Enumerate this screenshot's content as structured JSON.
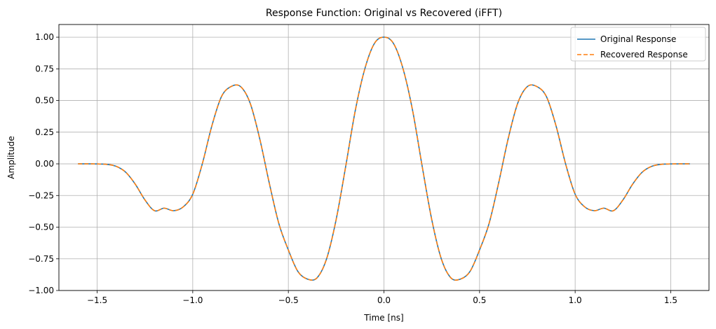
{
  "chart_data": {
    "type": "line",
    "title": "Response Function: Original vs Recovered (iFFT)",
    "xlabel": "Time [ns]",
    "ylabel": "Amplitude",
    "xlim": [
      -1.7,
      1.7
    ],
    "ylim": [
      -1.0,
      1.1
    ],
    "xticks": [
      -1.5,
      -1.0,
      -0.5,
      0.0,
      0.5,
      1.0,
      1.5
    ],
    "xtick_labels": [
      "−1.5",
      "−1.0",
      "−0.5",
      "0.0",
      "0.5",
      "1.0",
      "1.5"
    ],
    "yticks": [
      -1.0,
      -0.75,
      -0.5,
      -0.25,
      0.0,
      0.25,
      0.5,
      0.75,
      1.0
    ],
    "ytick_labels": [
      "−1.00",
      "−0.75",
      "−0.50",
      "−0.25",
      "0.00",
      "0.25",
      "0.50",
      "0.75",
      "1.00"
    ],
    "grid": true,
    "legend_position": "top-right",
    "series": [
      {
        "name": "Original Response",
        "color": "#1f77b4",
        "style": "solid",
        "x": [
          -1.6,
          -1.55,
          -1.5,
          -1.45,
          -1.4,
          -1.35,
          -1.3,
          -1.25,
          -1.2,
          -1.15,
          -1.1,
          -1.05,
          -1.0,
          -0.95,
          -0.9,
          -0.85,
          -0.8,
          -0.75,
          -0.7,
          -0.65,
          -0.6,
          -0.55,
          -0.5,
          -0.45,
          -0.4,
          -0.35,
          -0.3,
          -0.25,
          -0.2,
          -0.15,
          -0.1,
          -0.05,
          0.0,
          0.05,
          0.1,
          0.15,
          0.2,
          0.25,
          0.3,
          0.35,
          0.4,
          0.45,
          0.5,
          0.55,
          0.6,
          0.65,
          0.7,
          0.75,
          0.8,
          0.85,
          0.9,
          0.95,
          1.0,
          1.05,
          1.1,
          1.15,
          1.2,
          1.25,
          1.3,
          1.35,
          1.4,
          1.45,
          1.5,
          1.55,
          1.6
        ],
        "y": [
          0.0,
          0.0,
          -0.001,
          -0.004,
          -0.02,
          -0.067,
          -0.162,
          -0.285,
          -0.37,
          -0.35,
          -0.37,
          -0.34,
          -0.24,
          0.0,
          0.3,
          0.53,
          0.61,
          0.61,
          0.48,
          0.2,
          -0.15,
          -0.47,
          -0.68,
          -0.85,
          -0.91,
          -0.9,
          -0.75,
          -0.44,
          -0.02,
          0.42,
          0.75,
          0.95,
          1.0,
          0.95,
          0.75,
          0.42,
          -0.02,
          -0.44,
          -0.75,
          -0.9,
          -0.91,
          -0.85,
          -0.68,
          -0.47,
          -0.15,
          0.2,
          0.48,
          0.61,
          0.61,
          0.53,
          0.3,
          0.0,
          -0.24,
          -0.34,
          -0.37,
          -0.35,
          -0.37,
          -0.285,
          -0.162,
          -0.067,
          -0.02,
          -0.004,
          -0.001,
          0.0,
          0.0
        ]
      },
      {
        "name": "Recovered Response",
        "color": "#ff7f0e",
        "style": "dashed",
        "x": [
          -1.6,
          -1.55,
          -1.5,
          -1.45,
          -1.4,
          -1.35,
          -1.3,
          -1.25,
          -1.2,
          -1.15,
          -1.1,
          -1.05,
          -1.0,
          -0.95,
          -0.9,
          -0.85,
          -0.8,
          -0.75,
          -0.7,
          -0.65,
          -0.6,
          -0.55,
          -0.5,
          -0.45,
          -0.4,
          -0.35,
          -0.3,
          -0.25,
          -0.2,
          -0.15,
          -0.1,
          -0.05,
          0.0,
          0.05,
          0.1,
          0.15,
          0.2,
          0.25,
          0.3,
          0.35,
          0.4,
          0.45,
          0.5,
          0.55,
          0.6,
          0.65,
          0.7,
          0.75,
          0.8,
          0.85,
          0.9,
          0.95,
          1.0,
          1.05,
          1.1,
          1.15,
          1.2,
          1.25,
          1.3,
          1.35,
          1.4,
          1.45,
          1.5,
          1.55,
          1.6
        ],
        "y": [
          0.0,
          0.0,
          -0.001,
          -0.004,
          -0.02,
          -0.067,
          -0.162,
          -0.285,
          -0.37,
          -0.35,
          -0.37,
          -0.34,
          -0.24,
          0.0,
          0.3,
          0.53,
          0.61,
          0.61,
          0.48,
          0.2,
          -0.15,
          -0.47,
          -0.68,
          -0.85,
          -0.91,
          -0.9,
          -0.75,
          -0.44,
          -0.02,
          0.42,
          0.75,
          0.95,
          1.0,
          0.95,
          0.75,
          0.42,
          -0.02,
          -0.44,
          -0.75,
          -0.9,
          -0.91,
          -0.85,
          -0.68,
          -0.47,
          -0.15,
          0.2,
          0.48,
          0.61,
          0.61,
          0.53,
          0.3,
          0.0,
          -0.24,
          -0.34,
          -0.37,
          -0.35,
          -0.37,
          -0.285,
          -0.162,
          -0.067,
          -0.02,
          -0.004,
          -0.001,
          0.0,
          0.0
        ]
      }
    ]
  }
}
